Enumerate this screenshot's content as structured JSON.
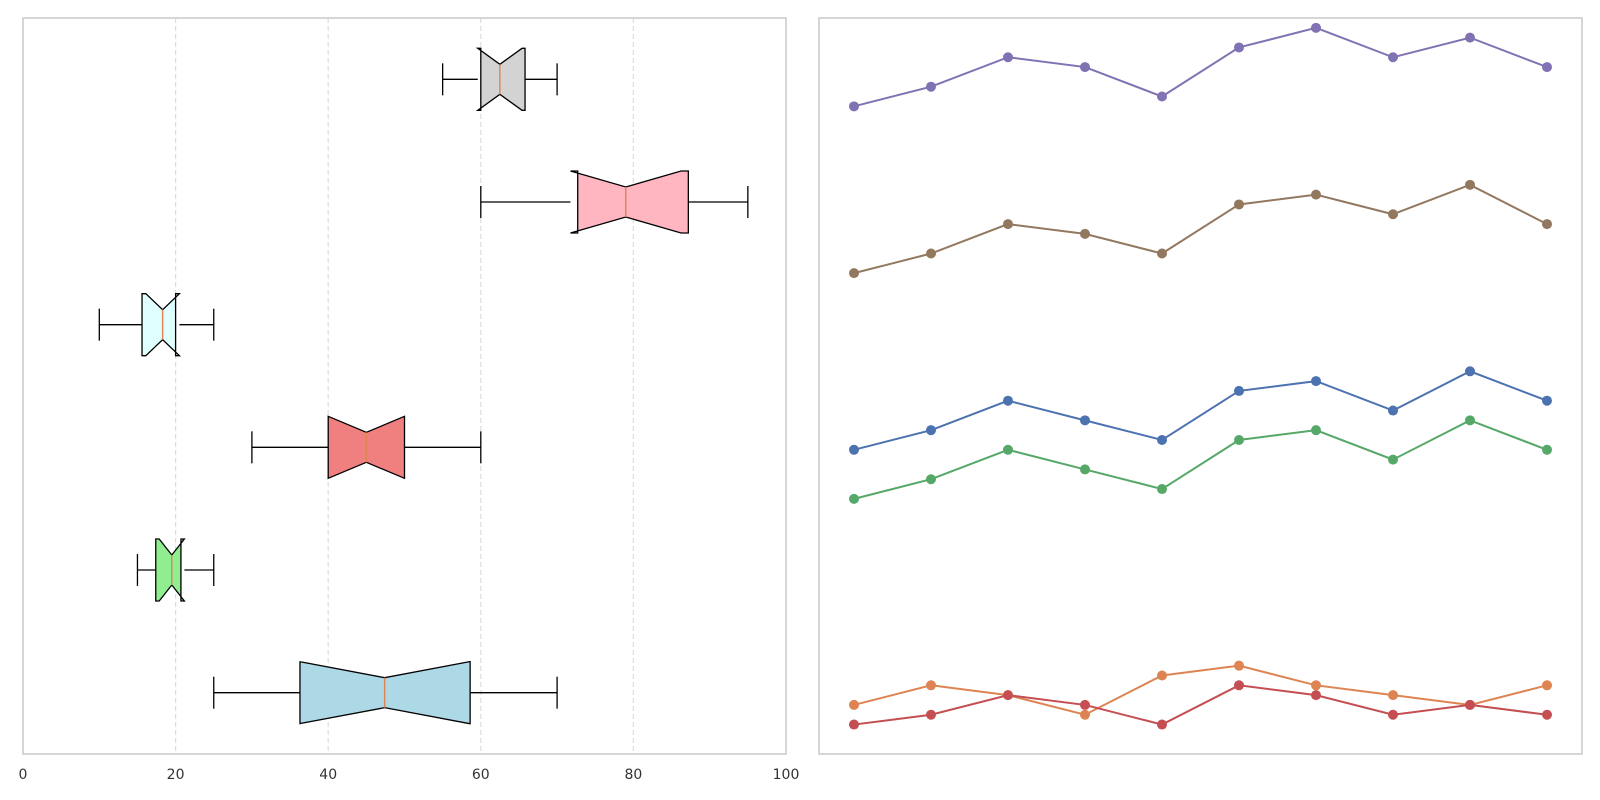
{
  "chart_data": [
    {
      "type": "boxplot",
      "orientation": "horizontal",
      "notched": true,
      "xlim": [
        0,
        100
      ],
      "x_ticks": [
        "0",
        "20",
        "40",
        "60",
        "80",
        "100"
      ],
      "grid": "vertical-dashed",
      "boxes": [
        {
          "color": "#add8e6",
          "whisker_low": 25,
          "q1": 36.3,
          "median": 47.4,
          "q3": 58.6,
          "whisker_high": 70
        },
        {
          "color": "#90ee90",
          "whisker_low": 15,
          "q1": 17.4,
          "median": 19.5,
          "q3": 20.7,
          "whisker_high": 25
        },
        {
          "color": "#f08080",
          "whisker_low": 30,
          "q1": 40,
          "median": 45,
          "q3": 50,
          "whisker_high": 60
        },
        {
          "color": "#e0ffff",
          "whisker_low": 10,
          "q1": 15.6,
          "median": 18.3,
          "q3": 20,
          "whisker_high": 25
        },
        {
          "color": "#ffb6c1",
          "whisker_low": 60,
          "q1": 72.7,
          "median": 79,
          "q3": 87.2,
          "whisker_high": 95
        },
        {
          "color": "#d3d3d3",
          "whisker_low": 55,
          "q1": 60,
          "median": 62.5,
          "q3": 65.8,
          "whisker_high": 70
        }
      ]
    },
    {
      "type": "line",
      "axes_visible": false,
      "x": [
        0,
        1,
        2,
        3,
        4,
        5,
        6,
        7,
        8,
        9
      ],
      "ylim": [
        0,
        75
      ],
      "series": [
        {
          "color": "#4c72b0",
          "values": [
            31,
            33,
            36,
            34,
            32,
            37,
            38,
            35,
            39,
            36
          ]
        },
        {
          "color": "#dd8452",
          "values": [
            5,
            7,
            6,
            4,
            8,
            9,
            7,
            6,
            5,
            7
          ]
        },
        {
          "color": "#55a868",
          "values": [
            26,
            28,
            31,
            29,
            27,
            32,
            33,
            30,
            34,
            31
          ]
        },
        {
          "color": "#c44e52",
          "values": [
            3,
            4,
            6,
            5,
            3,
            7,
            6,
            4,
            5,
            4
          ]
        },
        {
          "color": "#8172b3",
          "values": [
            66,
            68,
            71,
            70,
            67,
            72,
            74,
            71,
            73,
            70
          ]
        },
        {
          "color": "#937860",
          "values": [
            49,
            51,
            54,
            53,
            51,
            56,
            57,
            55,
            58,
            54
          ]
        }
      ]
    }
  ]
}
